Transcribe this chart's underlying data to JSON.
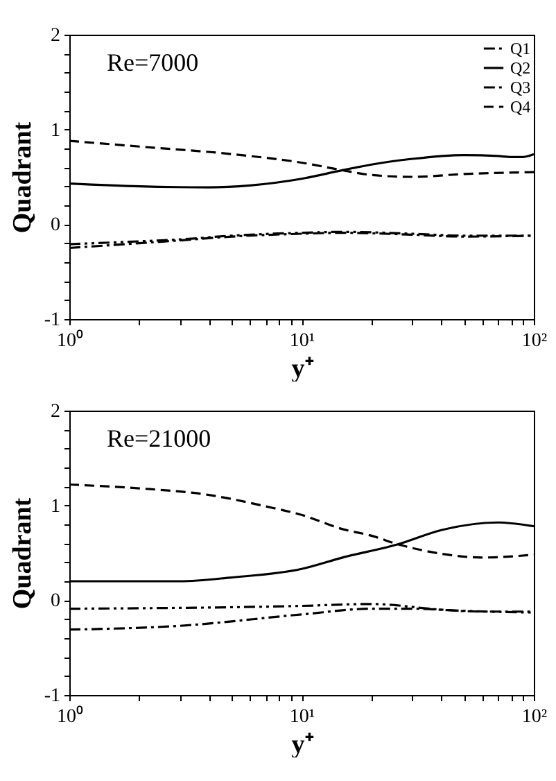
{
  "chart_data": [
    {
      "type": "line",
      "xlabel": "y⁺",
      "ylabel": "Quadrant",
      "annotations": [
        "Re=7000"
      ],
      "log": "x",
      "grid": false,
      "legend": "top right",
      "xlim": [
        1,
        100
      ],
      "ylim": [
        -1,
        2
      ],
      "xticks": [
        {
          "value": 1,
          "label": "10⁰"
        },
        {
          "value": 2,
          "label": null
        },
        {
          "value": 3,
          "label": null
        },
        {
          "value": 4,
          "label": null
        },
        {
          "value": 5,
          "label": null
        },
        {
          "value": 6,
          "label": null
        },
        {
          "value": 7,
          "label": null
        },
        {
          "value": 8,
          "label": null
        },
        {
          "value": 9,
          "label": null
        },
        {
          "value": 10,
          "label": "10¹"
        },
        {
          "value": 20,
          "label": null
        },
        {
          "value": 30,
          "label": null
        },
        {
          "value": 40,
          "label": null
        },
        {
          "value": 50,
          "label": null
        },
        {
          "value": 60,
          "label": null
        },
        {
          "value": 70,
          "label": null
        },
        {
          "value": 80,
          "label": null
        },
        {
          "value": 90,
          "label": null
        },
        {
          "value": 100,
          "label": "10²"
        }
      ],
      "yticks": [
        -1,
        {
          "value": -0.8,
          "label": null
        },
        {
          "value": -0.6,
          "label": null
        },
        {
          "value": -0.4,
          "label": null
        },
        {
          "value": -0.2,
          "label": null
        },
        0,
        {
          "value": 0.2,
          "label": null
        },
        {
          "value": 0.4,
          "label": null
        },
        {
          "value": 0.6,
          "label": null
        },
        {
          "value": 0.8,
          "label": null
        },
        1,
        {
          "value": 1.2,
          "label": null
        },
        {
          "value": 1.4,
          "label": null
        },
        {
          "value": 1.6,
          "label": null
        },
        {
          "value": 1.8,
          "label": null
        },
        2
      ],
      "series": [
        {
          "name": "Q1",
          "color": "#000000",
          "line_style": "dashdot",
          "x": [
            1,
            2,
            3,
            5,
            10,
            15,
            30,
            50,
            100
          ],
          "values": [
            -0.25,
            -0.2,
            -0.17,
            -0.13,
            -0.1,
            -0.09,
            -0.11,
            -0.13,
            -0.12
          ]
        },
        {
          "name": "Q2",
          "color": "#000000",
          "line_style": "solid",
          "x": [
            1,
            2,
            4,
            6,
            10,
            15,
            20,
            30,
            50,
            70,
            80,
            90,
            100
          ],
          "values": [
            0.43,
            0.4,
            0.39,
            0.41,
            0.48,
            0.57,
            0.63,
            0.69,
            0.73,
            0.72,
            0.71,
            0.71,
            0.74
          ]
        },
        {
          "name": "Q3",
          "color": "#000000",
          "line_style": "dashdotdot",
          "x": [
            1,
            2,
            3,
            5,
            10,
            15,
            30,
            50,
            100
          ],
          "values": [
            -0.21,
            -0.18,
            -0.16,
            -0.12,
            -0.09,
            -0.08,
            -0.1,
            -0.12,
            -0.12
          ]
        },
        {
          "name": "Q4",
          "color": "#000000",
          "line_style": "dashed",
          "x": [
            1,
            2,
            5,
            10,
            15,
            20,
            30,
            50,
            100
          ],
          "values": [
            0.88,
            0.82,
            0.74,
            0.65,
            0.57,
            0.52,
            0.5,
            0.53,
            0.55
          ]
        }
      ]
    },
    {
      "type": "line",
      "xlabel": "y⁺",
      "ylabel": "Quadrant",
      "annotations": [
        "Re=21000"
      ],
      "log": "x",
      "grid": false,
      "xlim": [
        1,
        100
      ],
      "ylim": [
        -1,
        2
      ],
      "xticks": [
        {
          "value": 1,
          "label": "10⁰"
        },
        {
          "value": 2,
          "label": null
        },
        {
          "value": 3,
          "label": null
        },
        {
          "value": 4,
          "label": null
        },
        {
          "value": 5,
          "label": null
        },
        {
          "value": 6,
          "label": null
        },
        {
          "value": 7,
          "label": null
        },
        {
          "value": 8,
          "label": null
        },
        {
          "value": 9,
          "label": null
        },
        {
          "value": 10,
          "label": "10¹"
        },
        {
          "value": 20,
          "label": null
        },
        {
          "value": 30,
          "label": null
        },
        {
          "value": 40,
          "label": null
        },
        {
          "value": 50,
          "label": null
        },
        {
          "value": 60,
          "label": null
        },
        {
          "value": 70,
          "label": null
        },
        {
          "value": 80,
          "label": null
        },
        {
          "value": 90,
          "label": null
        },
        {
          "value": 100,
          "label": "10²"
        }
      ],
      "yticks": [
        -1,
        {
          "value": -0.8,
          "label": null
        },
        {
          "value": -0.6,
          "label": null
        },
        {
          "value": -0.4,
          "label": null
        },
        {
          "value": -0.2,
          "label": null
        },
        0,
        {
          "value": 0.2,
          "label": null
        },
        {
          "value": 0.4,
          "label": null
        },
        {
          "value": 0.6,
          "label": null
        },
        {
          "value": 0.8,
          "label": null
        },
        1,
        {
          "value": 1.2,
          "label": null
        },
        {
          "value": 1.4,
          "label": null
        },
        {
          "value": 1.6,
          "label": null
        },
        {
          "value": 1.8,
          "label": null
        },
        2
      ],
      "series": [
        {
          "color": "#000000",
          "line_style": "dashdot",
          "x": [
            1,
            3,
            10,
            20,
            30,
            60,
            100
          ],
          "values": [
            -0.31,
            -0.27,
            -0.15,
            -0.09,
            -0.09,
            -0.12,
            -0.12
          ]
        },
        {
          "color": "#000000",
          "line_style": "solid",
          "x": [
            1,
            3,
            5,
            10,
            15,
            26,
            40,
            70,
            100
          ],
          "values": [
            0.2,
            0.2,
            0.24,
            0.33,
            0.45,
            0.59,
            0.74,
            0.82,
            0.78
          ]
        },
        {
          "color": "#000000",
          "line_style": "dashdotdot",
          "x": [
            1,
            10,
            20,
            40,
            100
          ],
          "values": [
            -0.09,
            -0.06,
            -0.04,
            -0.1,
            -0.13
          ]
        },
        {
          "color": "#000000",
          "line_style": "dashed",
          "x": [
            1,
            2,
            4,
            7,
            10,
            15,
            20,
            26,
            40,
            60,
            100
          ],
          "values": [
            1.22,
            1.18,
            1.11,
            0.99,
            0.9,
            0.75,
            0.68,
            0.59,
            0.49,
            0.45,
            0.48
          ]
        }
      ]
    }
  ]
}
